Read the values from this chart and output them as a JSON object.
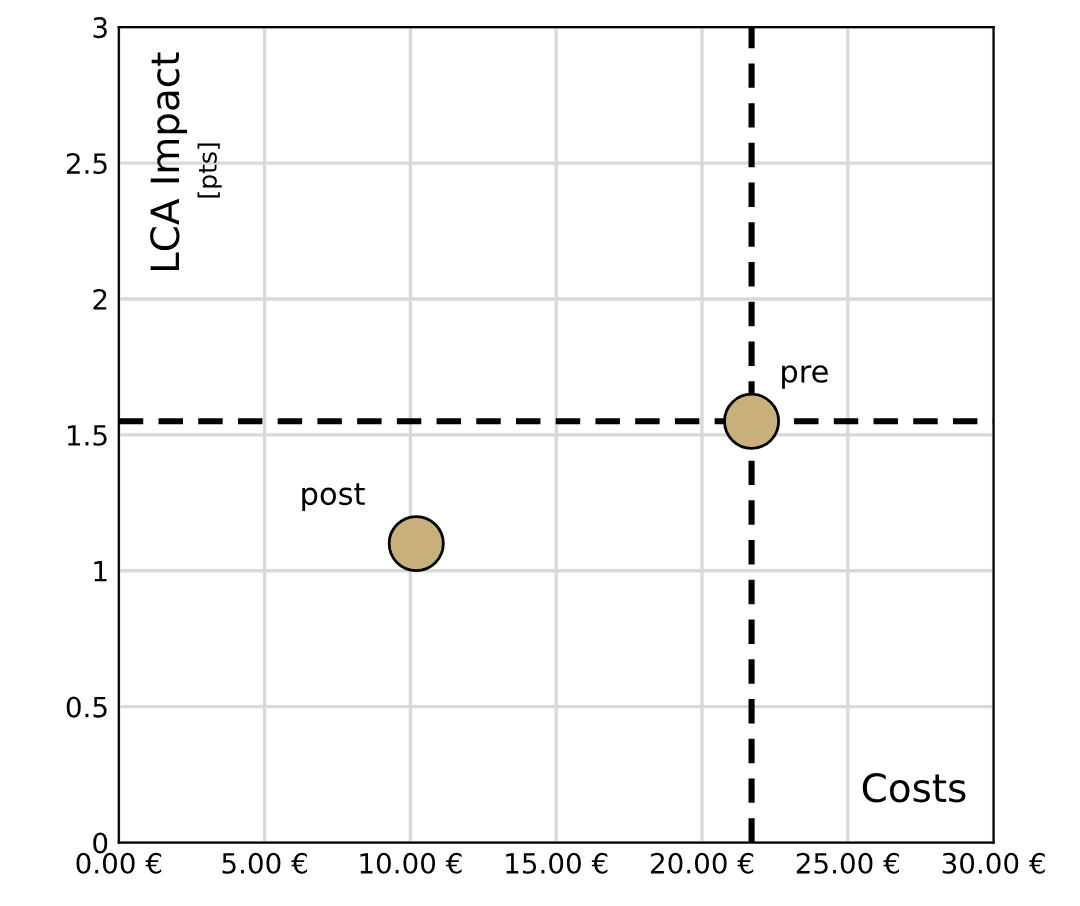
{
  "chart_data": {
    "type": "scatter",
    "xlabel": "Costs",
    "ylabel": "LCA Impact",
    "annotations": [
      "[pts]",
      {
        "text": "pre",
        "x": 21.7,
        "y": 1.55
      },
      {
        "text": "post",
        "x": 10.2,
        "y": 1.1
      }
    ],
    "x": [
      21.7,
      10.2
    ],
    "values": [
      1.55,
      1.1
    ],
    "color": "#c8b07a",
    "marker": "circle",
    "xlim": [
      0,
      30
    ],
    "xticks": [
      {
        "value": 0,
        "label": "0.00 €"
      },
      {
        "value": 5,
        "label": "5.00 €"
      },
      {
        "value": 10,
        "label": "10.00 €"
      },
      {
        "value": 15,
        "label": "15.00 €"
      },
      {
        "value": 20,
        "label": "20.00 €"
      },
      {
        "value": 25,
        "label": "25.00 €"
      },
      {
        "value": 30,
        "label": "30.00 €"
      }
    ],
    "ylim": [
      0,
      3
    ],
    "yticks": [
      0,
      0.5,
      1,
      1.5,
      2,
      2.5,
      3
    ],
    "grid": true,
    "ref_lines": [
      {
        "axis": "x",
        "value": 21.7,
        "color": "#000000",
        "line_style": "dashed"
      },
      {
        "axis": "y",
        "value": 1.55,
        "color": "#000000",
        "line_style": "dashed"
      }
    ]
  }
}
